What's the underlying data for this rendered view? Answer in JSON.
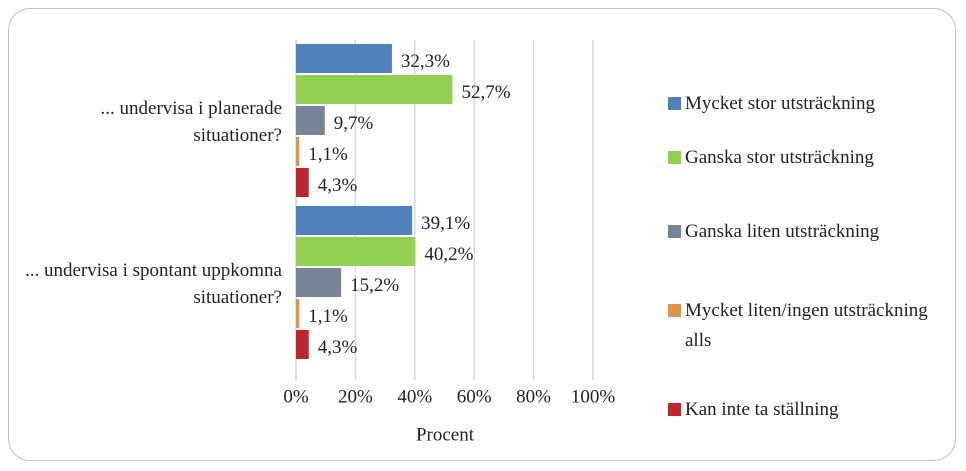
{
  "chart_data": {
    "type": "hbar",
    "categories": [
      "... undervisa i planerade situationer?",
      "... undervisa i spontant uppkomna situationer?"
    ],
    "series": [
      {
        "name": "Mycket stor utsträckning",
        "color": "#4f81bd",
        "values": [
          32.3,
          39.1
        ],
        "value_labels": [
          "32,3%",
          "39,1%"
        ]
      },
      {
        "name": "Ganska stor utsträckning",
        "color": "#92d050",
        "values": [
          52.7,
          40.2
        ],
        "value_labels": [
          "52,7%",
          "40,2%"
        ]
      },
      {
        "name": "Ganska liten utsträckning",
        "color": "#778396",
        "values": [
          9.7,
          15.2
        ],
        "value_labels": [
          "9,7%",
          "15,2%"
        ]
      },
      {
        "name": "Mycket liten/ingen utsträckning alls",
        "color": "#dd9447",
        "values": [
          1.1,
          1.1
        ],
        "value_labels": [
          "1,1%",
          "1,1%"
        ]
      },
      {
        "name": "Kan inte ta ställning",
        "color": "#c0272d",
        "values": [
          4.3,
          4.3
        ],
        "value_labels": [
          "4,3%",
          "4,3%"
        ]
      }
    ],
    "xlabel": "Procent",
    "xlim": [
      0,
      100
    ],
    "xticks": [
      {
        "value": 0,
        "label": "0%"
      },
      {
        "value": 20,
        "label": "20%"
      },
      {
        "value": 40,
        "label": "40%"
      },
      {
        "value": 60,
        "label": "60%"
      },
      {
        "value": 80,
        "label": "80%"
      },
      {
        "value": 100,
        "label": "100%"
      }
    ],
    "grid": true,
    "legend": "right"
  }
}
